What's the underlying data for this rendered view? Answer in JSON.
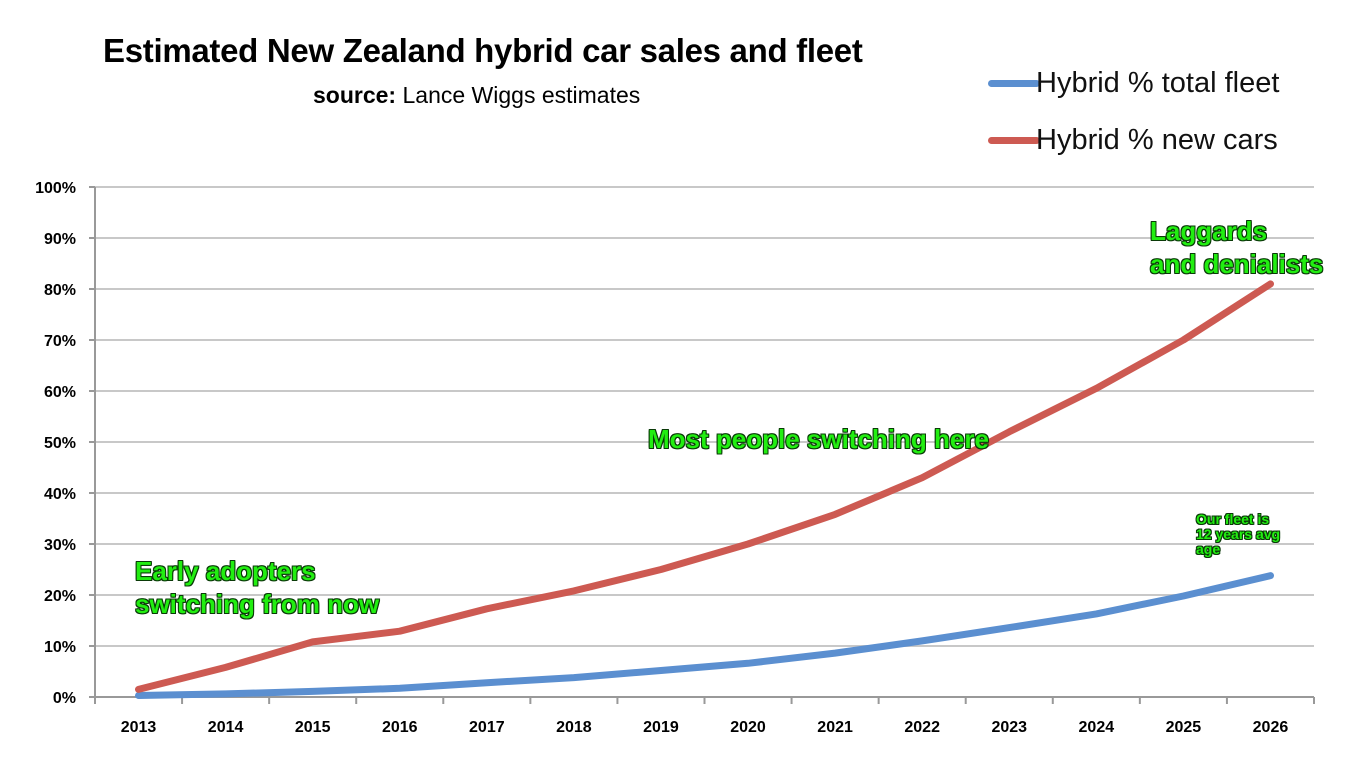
{
  "header": {
    "title": "Estimated New Zealand hybrid car sales and fleet",
    "subtitle_prefix": "source:",
    "subtitle_text": " Lance Wiggs estimates"
  },
  "legend": [
    {
      "label": "Hybrid % total fleet",
      "color": "#5b8fd0"
    },
    {
      "label": "Hybrid % new cars",
      "color": "#cd5a52"
    }
  ],
  "annotations": {
    "early_line1": "Early adopters",
    "early_line2": "switching from now",
    "most": "Most people switching here",
    "laggards_line1": "Laggards",
    "laggards_line2": "and denialists",
    "fleet_line1": "Our fleet is",
    "fleet_line2": "12 years avg",
    "fleet_line3": "age"
  },
  "chart_data": {
    "type": "line",
    "title": "Estimated New Zealand hybrid car sales and fleet",
    "categories": [
      "2013",
      "2014",
      "2015",
      "2016",
      "2017",
      "2018",
      "2019",
      "2020",
      "2021",
      "2022",
      "2023",
      "2024",
      "2025",
      "2026"
    ],
    "y_ticks": [
      "0%",
      "10%",
      "20%",
      "30%",
      "40%",
      "50%",
      "60%",
      "70%",
      "80%",
      "90%",
      "100%"
    ],
    "ylim": [
      0,
      100
    ],
    "grid": true,
    "legend_position": "top-right",
    "series": [
      {
        "name": "Hybrid % total fleet",
        "color": "#5b8fd0",
        "values": [
          0.3,
          0.6,
          1.1,
          1.7,
          2.8,
          3.8,
          5.2,
          6.6,
          8.6,
          11.0,
          13.6,
          16.3,
          19.8,
          23.8
        ]
      },
      {
        "name": "Hybrid % new cars",
        "color": "#cd5a52",
        "values": [
          1.5,
          5.8,
          10.8,
          12.9,
          17.3,
          20.8,
          25.0,
          30.0,
          35.8,
          43.0,
          52.0,
          60.5,
          70.0,
          81.0
        ]
      }
    ]
  }
}
